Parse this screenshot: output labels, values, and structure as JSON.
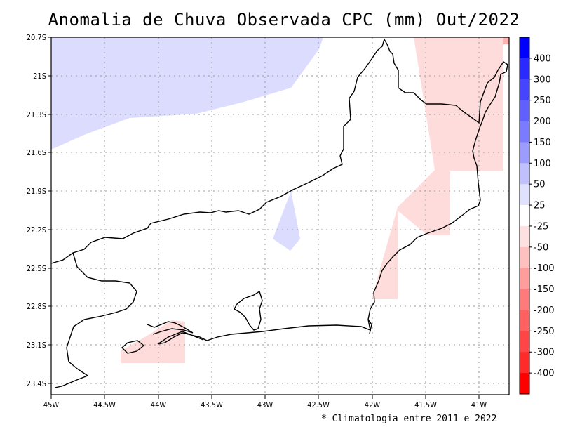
{
  "title": "Anomalia de Chuva Observada CPC (mm) Out/2022",
  "footnote": "* Climatologia entre 2011 e 2022",
  "map": {
    "x_ticks": [
      "45W",
      "44.5W",
      "44W",
      "43.5W",
      "43W",
      "42.5W",
      "42W",
      "41.5W",
      "41W"
    ],
    "y_ticks": [
      "20.7S",
      "21S",
      "21.3S",
      "21.6S",
      "21.9S",
      "22.2S",
      "22.5S",
      "22.8S",
      "23.1S",
      "23.4S"
    ],
    "lon_range": [
      -45.0,
      -40.7
    ],
    "lat_range": [
      -23.45,
      -20.7
    ]
  },
  "colorbar": {
    "labels": [
      "400",
      "300",
      "250",
      "200",
      "150",
      "100",
      "50",
      "25",
      "-25",
      "-50",
      "-100",
      "-150",
      "-200",
      "-250",
      "-300",
      "-400"
    ],
    "colors": [
      "#0000ff",
      "#2a2aff",
      "#4545ff",
      "#6060ff",
      "#7b7bff",
      "#9c9cff",
      "#c0c0ff",
      "#e0e0ff",
      "#ffffff",
      "#ffe0e0",
      "#ffc0c0",
      "#ff9c9c",
      "#ff7b7b",
      "#ff6060",
      "#ff4545",
      "#ff2a2a",
      "#ff0000"
    ]
  },
  "colors": {
    "positive_light": "#dcdcff",
    "negative_light": "#ffdcdc"
  }
}
